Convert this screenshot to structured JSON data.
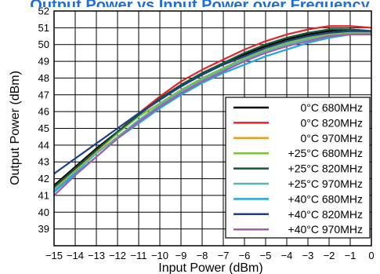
{
  "chart_data": {
    "type": "line",
    "title": "Output Power vs Input Power over Frequency",
    "xlabel": "Input Power (dBm)",
    "ylabel": "Output Power (dBm)",
    "xlim": [
      -15,
      0
    ],
    "ylim": [
      38,
      52
    ],
    "xticks": [
      "−15",
      "−14",
      "−13",
      "−12",
      "−11",
      "−10",
      "−9",
      "−8",
      "−7",
      "−6",
      "−5",
      "−4",
      "−3",
      "−2",
      "−1",
      "0"
    ],
    "yticks": [
      "39",
      "40",
      "41",
      "42",
      "43",
      "44",
      "45",
      "46",
      "47",
      "48",
      "49",
      "50",
      "51",
      "52"
    ],
    "grid": true,
    "legend_position": "bottom-right",
    "x": [
      -15,
      -14,
      -13,
      -12,
      -11,
      -10,
      -9,
      -8,
      -7,
      -6,
      -5,
      -4,
      -3,
      -2,
      -1,
      0
    ],
    "series": [
      {
        "name": "0°C  680MHz",
        "color": "#000000",
        "values": [
          41.6,
          42.7,
          43.8,
          44.8,
          45.8,
          46.7,
          47.5,
          48.2,
          48.8,
          49.4,
          49.9,
          50.3,
          50.6,
          50.8,
          50.9,
          50.8
        ]
      },
      {
        "name": "0°C  820MHz",
        "color": "#e8232a",
        "values": [
          41.5,
          42.6,
          43.7,
          44.8,
          45.9,
          46.9,
          47.8,
          48.5,
          49.1,
          49.7,
          50.2,
          50.6,
          50.9,
          51.1,
          51.1,
          51.0
        ]
      },
      {
        "name": "0°C  970MHz",
        "color": "#f29a1b",
        "values": [
          41.4,
          42.5,
          43.6,
          44.7,
          45.8,
          46.7,
          47.5,
          48.2,
          48.8,
          49.3,
          49.8,
          50.2,
          50.5,
          50.7,
          50.8,
          50.7
        ]
      },
      {
        "name": "+25°C  680MHz",
        "color": "#7cc243",
        "values": [
          41.5,
          42.6,
          43.7,
          44.7,
          45.7,
          46.5,
          47.3,
          48.0,
          48.6,
          49.2,
          49.7,
          50.1,
          50.4,
          50.6,
          50.7,
          50.7
        ]
      },
      {
        "name": "+25°C  820MHz",
        "color": "#0d5a33",
        "values": [
          41.5,
          42.6,
          43.7,
          44.8,
          45.8,
          46.8,
          47.6,
          48.3,
          48.9,
          49.5,
          50.0,
          50.4,
          50.7,
          50.9,
          50.9,
          50.8
        ]
      },
      {
        "name": "+25°C  970MHz",
        "color": "#5ab4ac",
        "values": [
          41.3,
          42.4,
          43.5,
          44.5,
          45.5,
          46.4,
          47.2,
          47.9,
          48.5,
          49.1,
          49.6,
          50.0,
          50.3,
          50.5,
          50.6,
          50.6
        ]
      },
      {
        "name": "+40°C  680MHz",
        "color": "#1ea9e1",
        "values": [
          41.2,
          42.3,
          43.3,
          44.4,
          45.3,
          46.2,
          47.0,
          47.7,
          48.3,
          48.8,
          49.3,
          49.7,
          50.1,
          50.4,
          50.6,
          50.6
        ]
      },
      {
        "name": "+40°C  820MHz",
        "color": "#1d3f8f",
        "values": [
          42.3,
          43.2,
          44.1,
          45.0,
          45.9,
          46.7,
          47.5,
          48.2,
          48.8,
          49.3,
          49.8,
          50.2,
          50.5,
          50.7,
          50.8,
          50.8
        ]
      },
      {
        "name": "+40°C  970MHz",
        "color": "#a85ca8",
        "values": [
          41.0,
          42.2,
          43.3,
          44.4,
          45.4,
          46.3,
          47.1,
          47.8,
          48.4,
          49.0,
          49.5,
          49.9,
          50.2,
          50.5,
          50.6,
          50.6
        ]
      }
    ]
  }
}
